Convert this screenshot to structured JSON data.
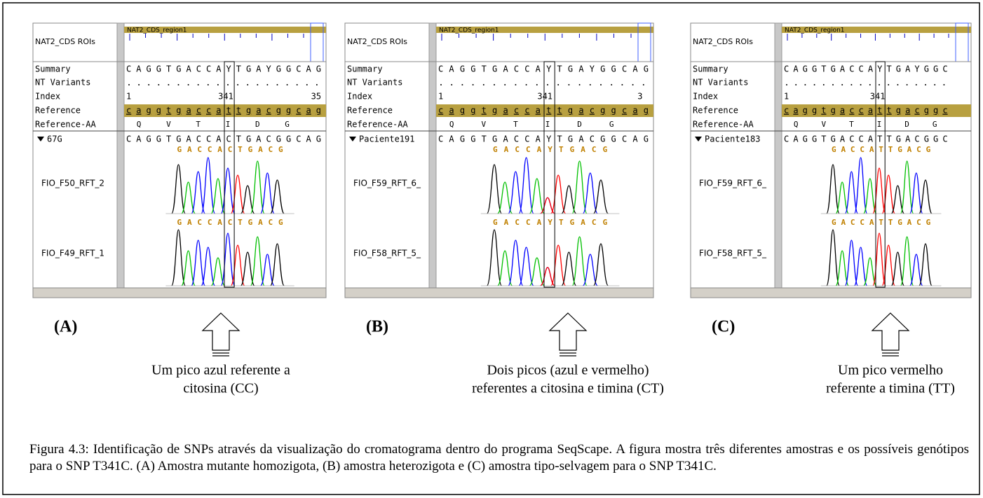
{
  "panels": [
    {
      "label": "(A)",
      "roi_label": "NAT2_CDS ROIs",
      "region": "NAT2_CDS_region1",
      "rows": [
        "Summary",
        "NT Variants",
        "Index",
        "Reference",
        "Reference-AA"
      ],
      "summary": "CAGGTGACCAYTGAYGGCAG",
      "index": [
        "1",
        "341",
        "35"
      ],
      "reference": "caggtgaccattgacggcag",
      "reference_aa": [
        "Q",
        "V",
        "T",
        "I",
        "D",
        "G"
      ],
      "sample": "67G",
      "consensus": "CAGGTGACCACTGACGGCAG",
      "traces": [
        {
          "name": "FIO_F50_RFT_2",
          "calls": "GACCACTGACG"
        },
        {
          "name": "FIO_F49_RFT_1",
          "calls": "GACCACTGACG"
        }
      ],
      "caption": [
        "Um pico azul referente a",
        "citosina (CC)"
      ]
    },
    {
      "label": "(B)",
      "roi_label": "NAT2_CDS ROIs",
      "region": "NAT2_CDS_region1",
      "rows": [
        "Summary",
        "NT Variants",
        "Index",
        "Reference",
        "Reference-AA"
      ],
      "summary": "CAGGTGACCAYTGAYGGCAG",
      "index": [
        "1",
        "341",
        "3"
      ],
      "reference": "caggtgaccattgacggcag",
      "reference_aa": [
        "Q",
        "V",
        "T",
        "I",
        "D",
        "G"
      ],
      "sample": "Paciente191",
      "consensus": "CAGGTGACCAYTGACGGCAG",
      "traces": [
        {
          "name": "FIO_F59_RFT_6_",
          "calls": "GACCAYTGACG"
        },
        {
          "name": "FIO_F58_RFT_5_",
          "calls": "GACCAYTGACG"
        }
      ],
      "caption": [
        "Dois picos (azul e vermelho)",
        "referentes a citosina e timina (CT)"
      ]
    },
    {
      "label": "(C)",
      "roi_label": "NAT2_CDS ROIs",
      "region": "NAT2_CDS_region1",
      "rows": [
        "Summary",
        "NT Variants",
        "Index",
        "Reference",
        "Reference-AA"
      ],
      "summary": "CAGGTGACCAYTGAYGGC",
      "index": [
        "1",
        "341"
      ],
      "reference": "caggtgaccattgacggc",
      "reference_aa": [
        "Q",
        "V",
        "T",
        "I",
        "D",
        "G"
      ],
      "sample": "Paciente183",
      "consensus": "CAGGTGACCATTGACGGC",
      "traces": [
        {
          "name": "FIO_F59_RFT_6_",
          "calls": "GACCATTGACG"
        },
        {
          "name": "FIO_F58_RFT_5_",
          "calls": "GACCATTGACG"
        }
      ],
      "caption": [
        "Um pico vermelho",
        "referente a timina (TT)"
      ]
    }
  ],
  "figure_caption": "Figura 4.3: Identificação de SNPs através da visualização do cromatograma dentro do programa SeqScape. A figura mostra três diferentes amostras e os possíveis genótipos para o SNP T341C. (A) Amostra mutante homozigota, (B) amostra heterozigota e (C) amostra tipo-selvagem para o SNP T341C."
}
